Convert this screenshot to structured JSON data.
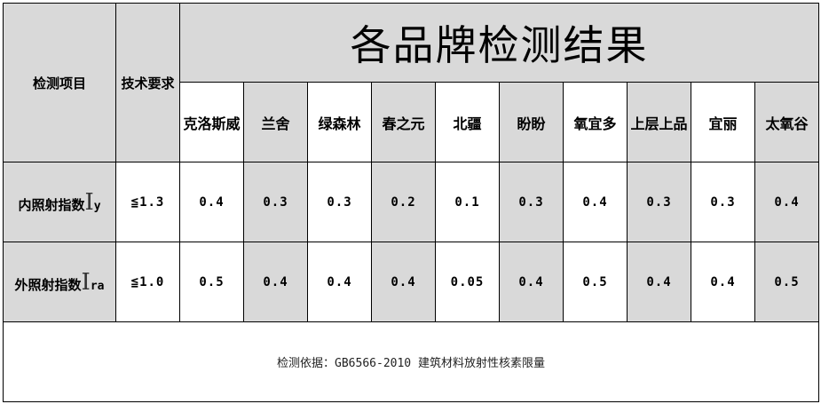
{
  "title": "各品牌检测结果",
  "headers": {
    "item": "检测项目",
    "requirement": "技术要求"
  },
  "brands": [
    "克洛斯威",
    "兰舍",
    "绿森林",
    "春之元",
    "北疆",
    "盼盼",
    "氧宜多",
    "上层上品",
    "宜丽",
    "太氧谷"
  ],
  "rows": [
    {
      "label": "内照射指数",
      "symbol": "I",
      "subscript": "y",
      "requirement": "≦1.3",
      "values": [
        "0.4",
        "0.3",
        "0.3",
        "0.2",
        "0.1",
        "0.3",
        "0.4",
        "0.3",
        "0.3",
        "0.4"
      ]
    },
    {
      "label": "外照射指数",
      "symbol": "I",
      "subscript": "ra",
      "requirement": "≦1.0",
      "values": [
        "0.5",
        "0.4",
        "0.4",
        "0.4",
        "0.05",
        "0.4",
        "0.5",
        "0.4",
        "0.4",
        "0.5"
      ]
    }
  ],
  "footer": "检测依据：GB6566-2010 建筑材料放射性核素限量",
  "colors": {
    "shaded": "#d9d9d9",
    "border": "#000000"
  }
}
